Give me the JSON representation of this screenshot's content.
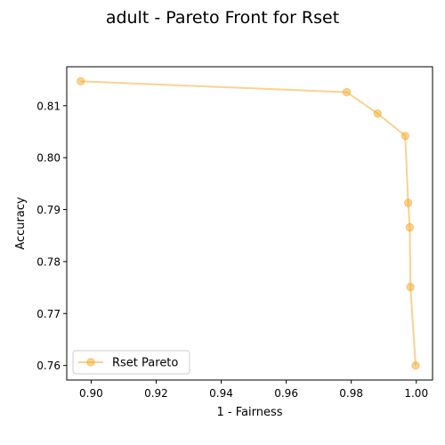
{
  "chart_data": {
    "type": "line",
    "title": "adult - Pareto Front for Rset",
    "xlabel": "1 - Fairness",
    "ylabel": "Accuracy",
    "xlim": [
      0.8925,
      1.005
    ],
    "ylim": [
      0.7572,
      0.8175
    ],
    "xticks": [
      0.9,
      0.92,
      0.94,
      0.96,
      0.98,
      1.0
    ],
    "xtick_labels": [
      "0.90",
      "0.92",
      "0.94",
      "0.96",
      "0.98",
      "1.00"
    ],
    "yticks": [
      0.76,
      0.77,
      0.78,
      0.79,
      0.8,
      0.81
    ],
    "ytick_labels": [
      "0.76",
      "0.77",
      "0.78",
      "0.79",
      "0.80",
      "0.81"
    ],
    "grid": false,
    "legend_position": "lower-left",
    "series": [
      {
        "name": "Rset Pareto",
        "color": "#f5a623",
        "marker": "circle",
        "x": [
          0.8968,
          0.9786,
          0.9881,
          0.9966,
          0.9975,
          0.998,
          0.9982,
          0.9998
        ],
        "y": [
          0.8147,
          0.8126,
          0.8085,
          0.8042,
          0.7913,
          0.7866,
          0.7751,
          0.76
        ]
      }
    ]
  }
}
